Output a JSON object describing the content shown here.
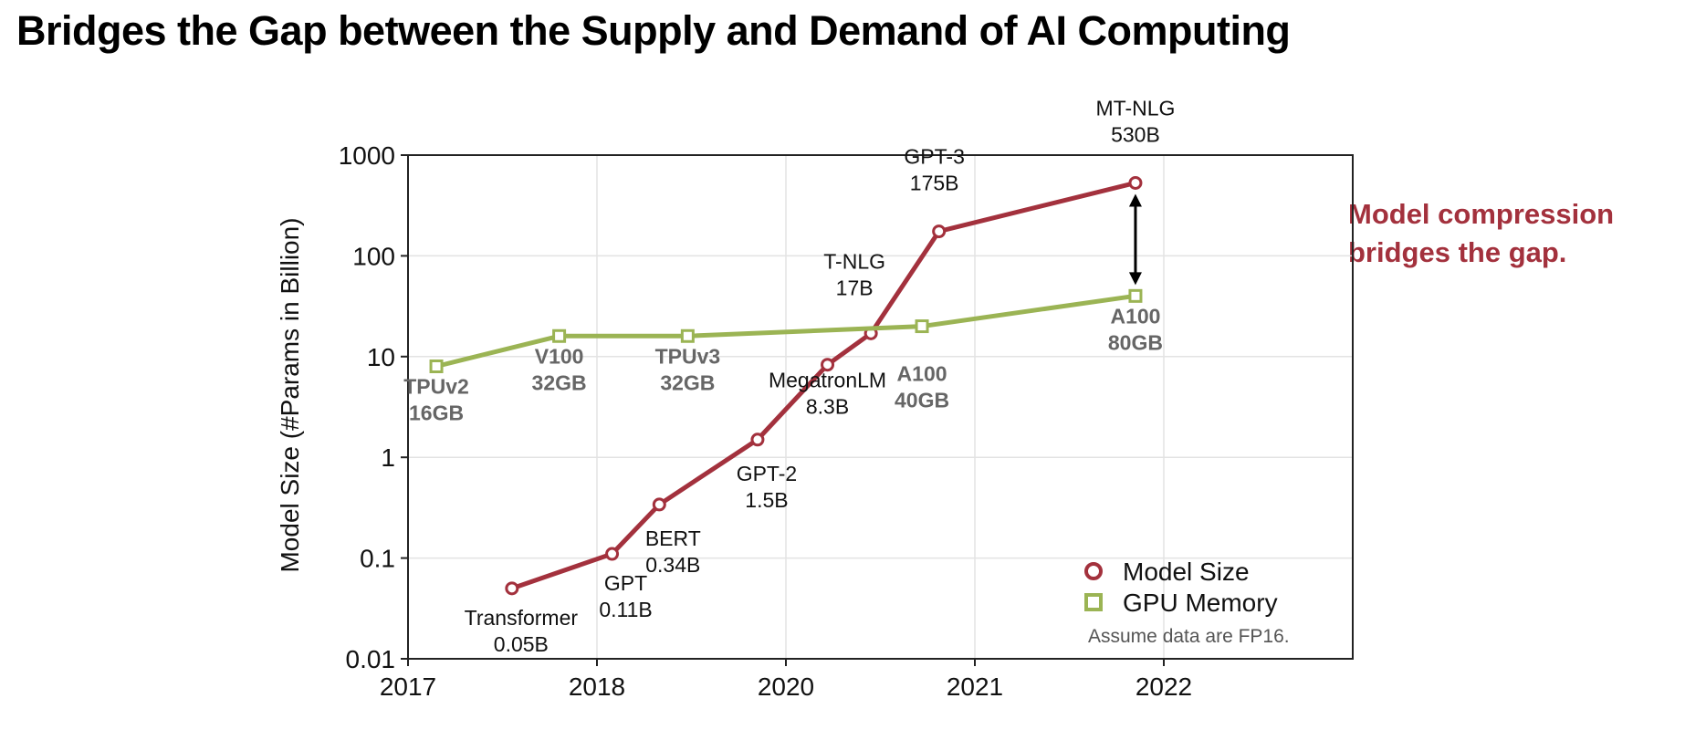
{
  "title": "Bridges the Gap between the Supply and Demand of AI Computing",
  "callout": {
    "line1": "Model compression",
    "line2": "bridges the gap."
  },
  "note": "Assume data are FP16.",
  "colors": {
    "model": "#a3313d",
    "gpu": "#9bb454",
    "gpu_label": "#666666",
    "callout": "#a3313d"
  },
  "chart_data": {
    "type": "line",
    "ylabel": "Model Size (#Params in Billion)",
    "xlabel": "",
    "y_scale": "log",
    "ylim": [
      0.01,
      1000
    ],
    "xlim": [
      2017,
      2022
    ],
    "grid": true,
    "legend_position": "bottom-right",
    "x_ticks": [
      {
        "value": 2017,
        "label": "2017"
      },
      {
        "value": 2018,
        "label": "2018"
      },
      {
        "value": 2019,
        "label": "2020"
      },
      {
        "value": 2020,
        "label": "2021"
      },
      {
        "value": 2021,
        "label": "2022"
      }
    ],
    "y_ticks": [
      {
        "value": 0.01,
        "label": "0.01"
      },
      {
        "value": 0.1,
        "label": "0.1"
      },
      {
        "value": 1,
        "label": "1"
      },
      {
        "value": 10,
        "label": "10"
      },
      {
        "value": 100,
        "label": "100"
      },
      {
        "value": 1000,
        "label": "1000"
      }
    ],
    "series": [
      {
        "name": "Model Size",
        "marker": "circle",
        "points": [
          {
            "x": 2017.55,
            "y": 0.05,
            "label": [
              "Transformer",
              "0.05B"
            ]
          },
          {
            "x": 2018.08,
            "y": 0.11,
            "label": [
              "GPT",
              "0.11B"
            ]
          },
          {
            "x": 2018.33,
            "y": 0.34,
            "label": [
              "BERT",
              "0.34B"
            ]
          },
          {
            "x": 2018.85,
            "y": 1.5,
            "label": [
              "GPT-2",
              "1.5B"
            ]
          },
          {
            "x": 2019.22,
            "y": 8.3,
            "label": [
              "MegatronLM",
              "8.3B"
            ]
          },
          {
            "x": 2019.45,
            "y": 17,
            "label": [
              "T-NLG",
              "17B"
            ]
          },
          {
            "x": 2019.81,
            "y": 175,
            "label": [
              "GPT-3",
              "175B"
            ]
          },
          {
            "x": 2020.85,
            "y": 530,
            "label": [
              "MT-NLG",
              "530B"
            ]
          }
        ]
      },
      {
        "name": "GPU Memory",
        "marker": "square",
        "points": [
          {
            "x": 2017.15,
            "y": 8,
            "label": [
              "TPUv2",
              "16GB"
            ]
          },
          {
            "x": 2017.8,
            "y": 16,
            "label": [
              "V100",
              "32GB"
            ]
          },
          {
            "x": 2018.48,
            "y": 16,
            "label": [
              "TPUv3",
              "32GB"
            ]
          },
          {
            "x": 2019.72,
            "y": 20,
            "label": [
              "A100",
              "40GB"
            ]
          },
          {
            "x": 2020.85,
            "y": 40,
            "label": [
              "A100",
              "80GB"
            ]
          }
        ]
      }
    ]
  }
}
